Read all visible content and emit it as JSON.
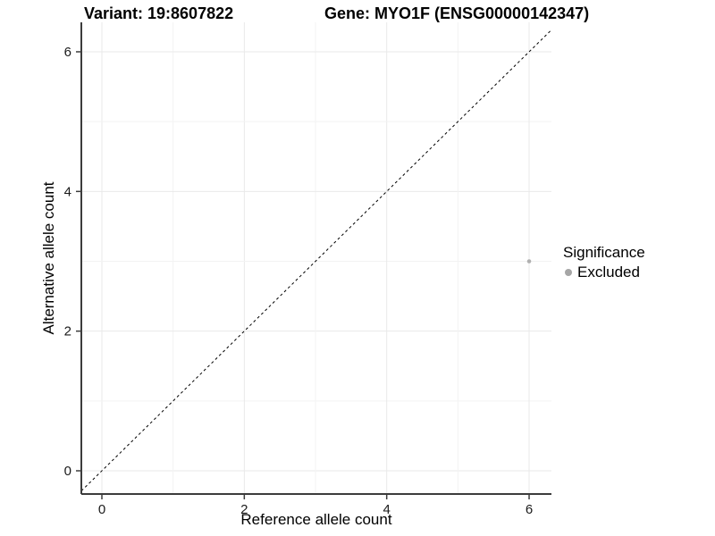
{
  "title": {
    "variant": "Variant: 19:8607822",
    "gene": "Gene: MYO1F (ENSG00000142347)"
  },
  "legend": {
    "title": "Significance",
    "items": [
      {
        "label": "Excluded",
        "marker": "circle-icon",
        "color": "#a6a6a6"
      }
    ]
  },
  "chart_data": {
    "type": "scatter",
    "title": "Variant: 19:8607822   Gene: MYO1F (ENSG00000142347)",
    "xlabel": "Reference allele count",
    "ylabel": "Alternative allele count",
    "xlim": [
      -0.3,
      6.3
    ],
    "ylim": [
      -0.35,
      6.4
    ],
    "xticks": [
      0,
      2,
      4,
      6
    ],
    "yticks": [
      0,
      2,
      4,
      6
    ],
    "grid": true,
    "gridlines_every": 1,
    "legend_position": "right",
    "series": [
      {
        "name": "Excluded",
        "color": "#b0b0b0",
        "marker": "circle",
        "points": [
          {
            "x": 6,
            "y": 3
          }
        ]
      }
    ],
    "reference_line": {
      "equation": "y = x",
      "style": "dashed",
      "color": "#000000"
    },
    "style": {
      "background": "#ffffff",
      "grid_major_color": "#e9e9e9",
      "grid_minor_color": "#f3f3f3",
      "axis_line_color": "#3c3c3c",
      "tick_label_color": "#1a1a1a"
    }
  }
}
